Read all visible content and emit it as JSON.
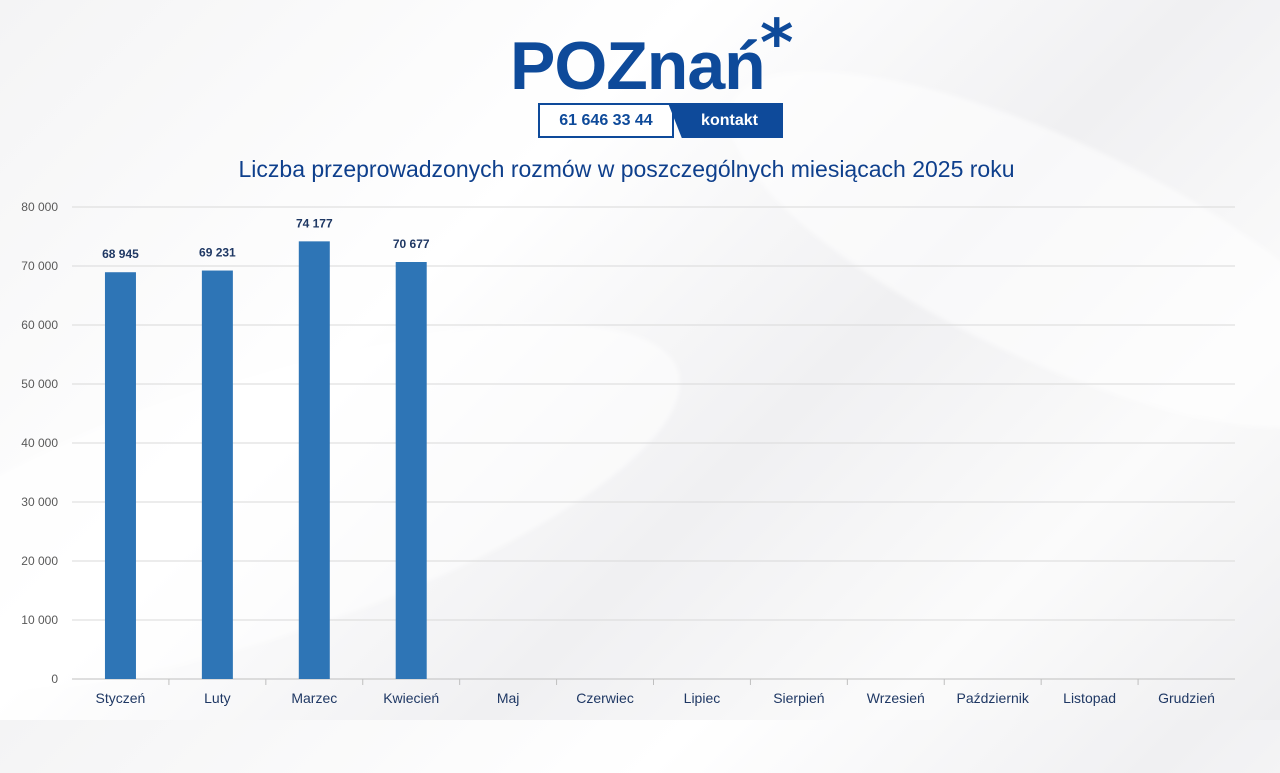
{
  "logo": {
    "wordmark": "POZnań",
    "phone": "61 646 33 44",
    "contact": "kontakt"
  },
  "colors": {
    "brand": "#0e4a9a",
    "bar": "#2e75b6",
    "title": "#0e3f8c",
    "label": "#1f3864",
    "grid": "#d9d9d9"
  },
  "chart_data": {
    "type": "bar",
    "title": "Liczba przeprowadzonych rozmów w poszczególnych miesiącach 2025 roku",
    "categories": [
      "Styczeń",
      "Luty",
      "Marzec",
      "Kwiecień",
      "Maj",
      "Czerwiec",
      "Lipiec",
      "Sierpień",
      "Wrzesień",
      "Październik",
      "Listopad",
      "Grudzień"
    ],
    "values": [
      68945,
      69231,
      74177,
      70677,
      null,
      null,
      null,
      null,
      null,
      null,
      null,
      null
    ],
    "data_labels": [
      "68 945",
      "69 231",
      "74 177",
      "70 677",
      "",
      "",
      "",
      "",
      "",
      "",
      "",
      ""
    ],
    "ylim": [
      0,
      80000
    ],
    "yticks": [
      0,
      10000,
      20000,
      30000,
      40000,
      50000,
      60000,
      70000,
      80000
    ],
    "ytick_labels": [
      "0",
      "10 000",
      "20 000",
      "30 000",
      "40 000",
      "50 000",
      "60 000",
      "70 000",
      "80 000"
    ],
    "grid": true
  }
}
